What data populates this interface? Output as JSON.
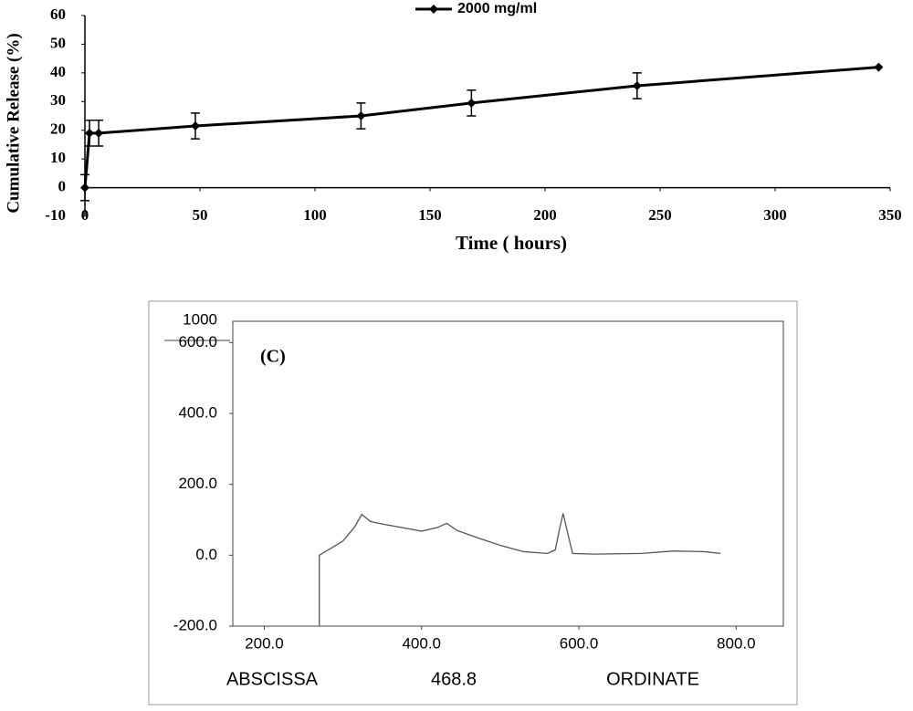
{
  "chart_data": [
    {
      "type": "line",
      "xlabel": "Time  ( hours)",
      "ylabel": "Cumulative Release (%)",
      "x": [
        0,
        2,
        6,
        48,
        120,
        168,
        240,
        345
      ],
      "series": [
        {
          "name": "2000 mg/ml",
          "color": "#000000",
          "values": [
            0,
            19,
            19,
            21.5,
            25,
            29.5,
            35.5,
            42
          ],
          "errors": [
            4.5,
            4.5,
            4.5,
            4.5,
            4.5,
            4.5,
            4.5,
            0
          ]
        }
      ],
      "xlim": [
        0,
        350
      ],
      "xticks": [
        0,
        50,
        100,
        150,
        200,
        250,
        300,
        350
      ],
      "ylim": [
        -10,
        60
      ],
      "yticks": [
        -10,
        0,
        10,
        20,
        30,
        40,
        50,
        60
      ],
      "legend": "top"
    },
    {
      "type": "spectrum",
      "panel_label": "(C)",
      "y_top_label": "1000",
      "annotations": [
        "ABSCISSA",
        "468.8",
        "ORDINATE"
      ],
      "x": [
        270,
        270,
        285,
        300,
        315,
        324,
        335,
        350,
        375,
        400,
        420,
        432,
        445,
        470,
        500,
        530,
        560,
        570,
        576,
        580,
        585,
        592,
        620,
        680,
        720,
        760,
        780
      ],
      "series": [
        {
          "color": "#555555",
          "values": [
            -200,
            0,
            20,
            40,
            80,
            115,
            95,
            88,
            78,
            68,
            78,
            90,
            70,
            50,
            28,
            10,
            5,
            15,
            80,
            118,
            70,
            5,
            3,
            5,
            12,
            10,
            5
          ]
        }
      ],
      "xlim": [
        160,
        860
      ],
      "xticks": [
        {
          "value": 200,
          "label": "200.0"
        },
        {
          "value": 400,
          "label": "400.0"
        },
        {
          "value": 600,
          "label": "600.0"
        },
        {
          "value": 800,
          "label": "800.0"
        }
      ],
      "ylim": [
        -200,
        660
      ],
      "yticks": [
        {
          "value": -200,
          "label": "-200.0"
        },
        {
          "value": 0,
          "label": "0.0"
        },
        {
          "value": 200,
          "label": "200.0"
        },
        {
          "value": 400,
          "label": "400.0"
        },
        {
          "value": 600,
          "label": "600.0"
        }
      ]
    }
  ]
}
